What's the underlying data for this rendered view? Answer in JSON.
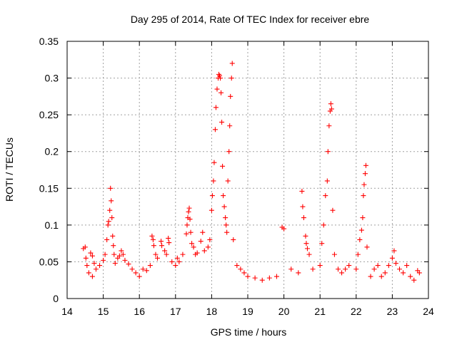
{
  "chart_data": {
    "type": "scatter",
    "title": "Day 295 of 2014, Rate Of TEC Index for receiver ebre",
    "xlabel": "GPS time / hours",
    "ylabel": "ROTI / TECUs",
    "xlim": [
      14,
      24
    ],
    "ylim": [
      0,
      0.35
    ],
    "xticks": [
      "14",
      "15",
      "16",
      "17",
      "18",
      "19",
      "20",
      "21",
      "22",
      "23",
      "24"
    ],
    "yticks": [
      "0",
      "0.05",
      "0.1",
      "0.15",
      "0.2",
      "0.25",
      "0.3",
      "0.35"
    ],
    "grid": true,
    "marker": "plus",
    "color": "#ff0000",
    "series": [
      {
        "name": "ROTI",
        "points": [
          [
            14.45,
            0.068
          ],
          [
            14.5,
            0.07
          ],
          [
            14.52,
            0.055
          ],
          [
            14.55,
            0.045
          ],
          [
            14.6,
            0.035
          ],
          [
            14.7,
            0.03
          ],
          [
            14.65,
            0.062
          ],
          [
            14.7,
            0.058
          ],
          [
            14.75,
            0.048
          ],
          [
            14.8,
            0.04
          ],
          [
            14.9,
            0.045
          ],
          [
            15.0,
            0.052
          ],
          [
            15.05,
            0.06
          ],
          [
            15.1,
            0.08
          ],
          [
            15.13,
            0.1
          ],
          [
            15.15,
            0.105
          ],
          [
            15.18,
            0.12
          ],
          [
            15.2,
            0.15
          ],
          [
            15.22,
            0.133
          ],
          [
            15.24,
            0.11
          ],
          [
            15.26,
            0.085
          ],
          [
            15.28,
            0.072
          ],
          [
            15.3,
            0.06
          ],
          [
            15.33,
            0.048
          ],
          [
            15.4,
            0.055
          ],
          [
            15.45,
            0.058
          ],
          [
            15.5,
            0.065
          ],
          [
            15.55,
            0.06
          ],
          [
            15.6,
            0.052
          ],
          [
            15.7,
            0.047
          ],
          [
            15.8,
            0.04
          ],
          [
            15.9,
            0.035
          ],
          [
            16.0,
            0.03
          ],
          [
            16.1,
            0.04
          ],
          [
            16.2,
            0.038
          ],
          [
            16.3,
            0.045
          ],
          [
            16.35,
            0.085
          ],
          [
            16.38,
            0.08
          ],
          [
            16.4,
            0.072
          ],
          [
            16.45,
            0.06
          ],
          [
            16.5,
            0.055
          ],
          [
            16.6,
            0.078
          ],
          [
            16.62,
            0.072
          ],
          [
            16.7,
            0.065
          ],
          [
            16.75,
            0.06
          ],
          [
            16.8,
            0.082
          ],
          [
            16.82,
            0.076
          ],
          [
            16.9,
            0.05
          ],
          [
            17.0,
            0.045
          ],
          [
            17.05,
            0.055
          ],
          [
            17.1,
            0.05
          ],
          [
            17.2,
            0.06
          ],
          [
            17.3,
            0.088
          ],
          [
            17.32,
            0.1
          ],
          [
            17.34,
            0.11
          ],
          [
            17.36,
            0.118
          ],
          [
            17.38,
            0.123
          ],
          [
            17.4,
            0.108
          ],
          [
            17.42,
            0.09
          ],
          [
            17.45,
            0.075
          ],
          [
            17.5,
            0.07
          ],
          [
            17.55,
            0.06
          ],
          [
            17.6,
            0.062
          ],
          [
            17.7,
            0.078
          ],
          [
            17.75,
            0.09
          ],
          [
            17.8,
            0.065
          ],
          [
            17.9,
            0.07
          ],
          [
            17.95,
            0.08
          ],
          [
            18.0,
            0.12
          ],
          [
            18.02,
            0.14
          ],
          [
            18.05,
            0.16
          ],
          [
            18.07,
            0.185
          ],
          [
            18.1,
            0.23
          ],
          [
            18.12,
            0.26
          ],
          [
            18.15,
            0.285
          ],
          [
            18.18,
            0.3
          ],
          [
            18.2,
            0.305
          ],
          [
            18.22,
            0.303
          ],
          [
            18.24,
            0.3
          ],
          [
            18.26,
            0.28
          ],
          [
            18.28,
            0.24
          ],
          [
            18.3,
            0.18
          ],
          [
            18.32,
            0.14
          ],
          [
            18.35,
            0.125
          ],
          [
            18.38,
            0.11
          ],
          [
            18.4,
            0.1
          ],
          [
            18.42,
            0.09
          ],
          [
            18.45,
            0.16
          ],
          [
            18.48,
            0.2
          ],
          [
            18.5,
            0.235
          ],
          [
            18.52,
            0.275
          ],
          [
            18.55,
            0.3
          ],
          [
            18.57,
            0.32
          ],
          [
            18.6,
            0.08
          ],
          [
            18.7,
            0.045
          ],
          [
            18.8,
            0.04
          ],
          [
            18.9,
            0.035
          ],
          [
            19.0,
            0.03
          ],
          [
            19.2,
            0.028
          ],
          [
            19.4,
            0.025
          ],
          [
            19.6,
            0.028
          ],
          [
            19.8,
            0.03
          ],
          [
            19.95,
            0.097
          ],
          [
            20.0,
            0.095
          ],
          [
            20.2,
            0.04
          ],
          [
            20.4,
            0.035
          ],
          [
            20.5,
            0.146
          ],
          [
            20.52,
            0.125
          ],
          [
            20.55,
            0.11
          ],
          [
            20.6,
            0.085
          ],
          [
            20.62,
            0.075
          ],
          [
            20.65,
            0.068
          ],
          [
            20.7,
            0.06
          ],
          [
            20.8,
            0.04
          ],
          [
            21.0,
            0.045
          ],
          [
            21.05,
            0.075
          ],
          [
            21.1,
            0.1
          ],
          [
            21.15,
            0.14
          ],
          [
            21.2,
            0.16
          ],
          [
            21.22,
            0.2
          ],
          [
            21.25,
            0.235
          ],
          [
            21.28,
            0.255
          ],
          [
            21.3,
            0.265
          ],
          [
            21.32,
            0.258
          ],
          [
            21.35,
            0.12
          ],
          [
            21.4,
            0.06
          ],
          [
            21.5,
            0.04
          ],
          [
            21.6,
            0.035
          ],
          [
            21.7,
            0.04
          ],
          [
            21.8,
            0.045
          ],
          [
            22.0,
            0.04
          ],
          [
            22.05,
            0.06
          ],
          [
            22.1,
            0.08
          ],
          [
            22.15,
            0.093
          ],
          [
            22.18,
            0.11
          ],
          [
            22.2,
            0.14
          ],
          [
            22.22,
            0.155
          ],
          [
            22.25,
            0.17
          ],
          [
            22.27,
            0.181
          ],
          [
            22.3,
            0.07
          ],
          [
            22.4,
            0.03
          ],
          [
            22.5,
            0.04
          ],
          [
            22.6,
            0.045
          ],
          [
            22.7,
            0.03
          ],
          [
            22.8,
            0.035
          ],
          [
            22.9,
            0.045
          ],
          [
            23.0,
            0.055
          ],
          [
            23.05,
            0.065
          ],
          [
            23.1,
            0.048
          ],
          [
            23.2,
            0.04
          ],
          [
            23.3,
            0.035
          ],
          [
            23.4,
            0.045
          ],
          [
            23.5,
            0.03
          ],
          [
            23.6,
            0.025
          ],
          [
            23.7,
            0.038
          ],
          [
            23.75,
            0.035
          ]
        ]
      }
    ]
  }
}
